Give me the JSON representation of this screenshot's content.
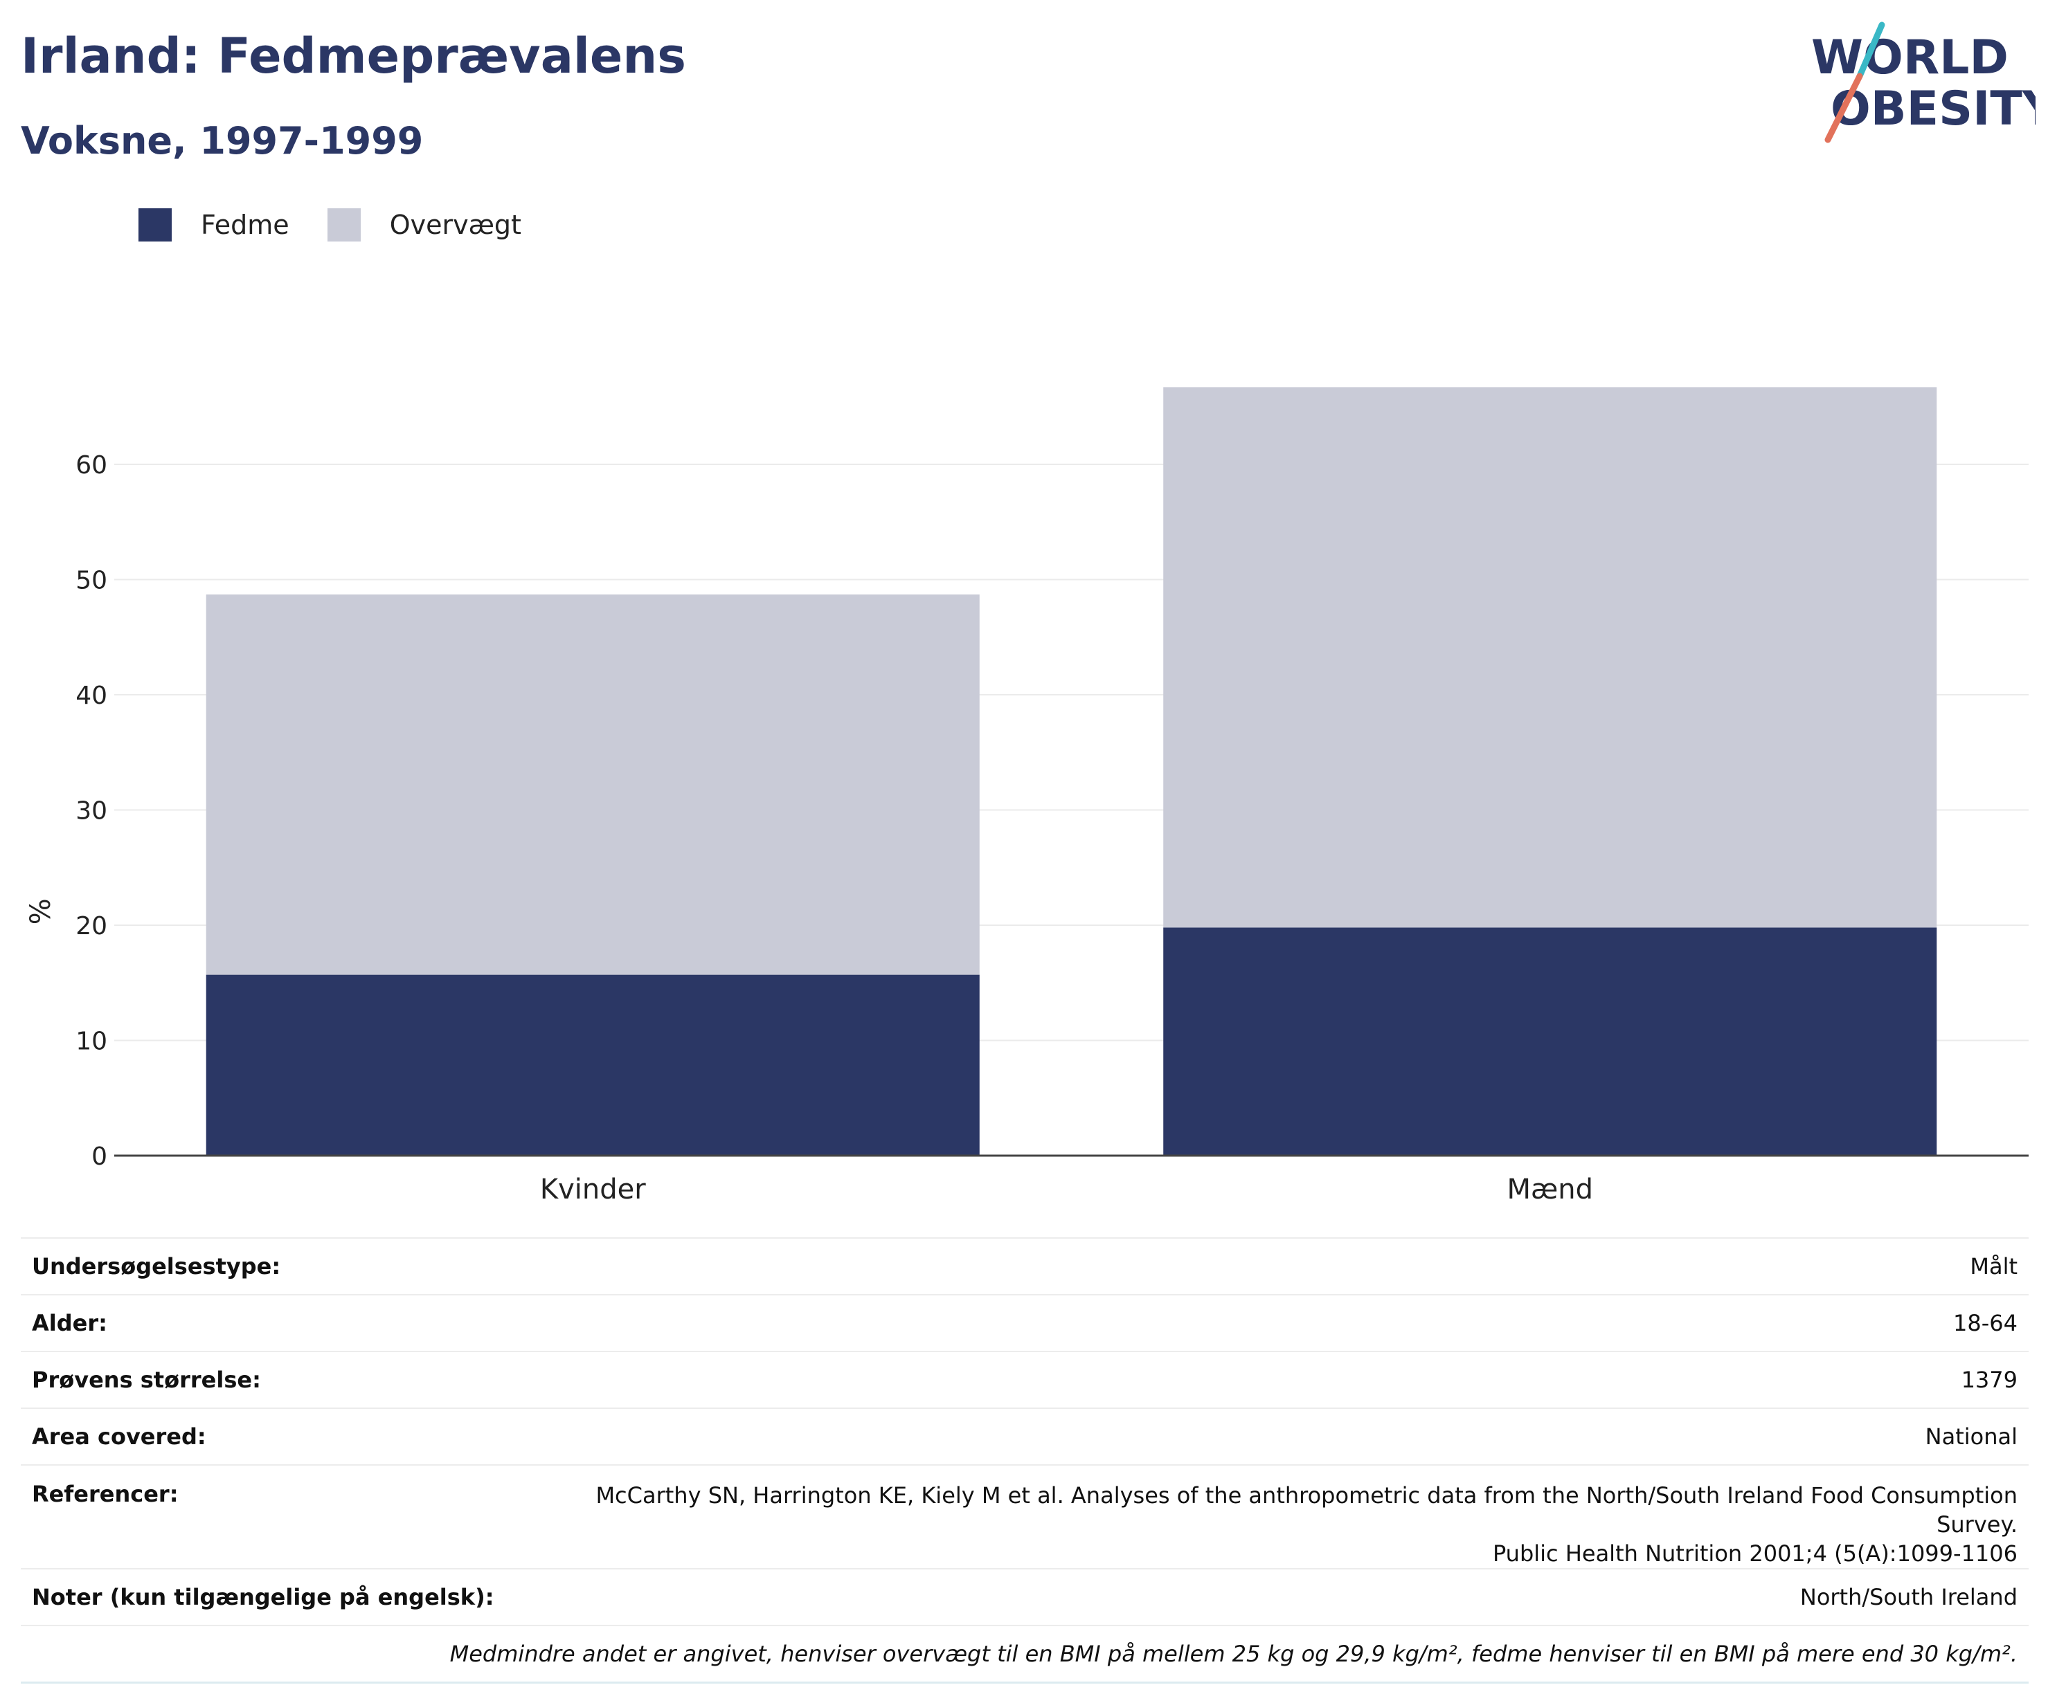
{
  "header": {
    "title": "Irland: Fedmeprævalens",
    "subtitle": "Voksne, 1997-1999",
    "logo_line1": "WORLD",
    "logo_line2": "OBESITY"
  },
  "colors": {
    "fedme": "#2b3765",
    "overvaegt": "#c9cbd7",
    "accent_teal": "#3ab8c6",
    "accent_coral": "#e2725b"
  },
  "legend": [
    {
      "label": "Fedme",
      "color": "#2b3765"
    },
    {
      "label": "Overvægt",
      "color": "#c9cbd7"
    }
  ],
  "chart_data": {
    "type": "bar",
    "stacked": true,
    "categories": [
      "Kvinder",
      "Mænd"
    ],
    "series": [
      {
        "name": "Fedme",
        "values": [
          15.7,
          19.8
        ]
      },
      {
        "name": "Overvægt",
        "values": [
          33.0,
          46.9
        ]
      }
    ],
    "ylabel": "%",
    "yticks": [
      0,
      10,
      20,
      30,
      40,
      50,
      60
    ],
    "ylim": [
      0,
      70
    ],
    "grid": true,
    "legend_position": "top-left"
  },
  "info": {
    "rows": [
      {
        "key": "Undersøgelsestype:",
        "value": "Målt"
      },
      {
        "key": "Alder:",
        "value": "18-64"
      },
      {
        "key": "Prøvens størrelse:",
        "value": "1379"
      },
      {
        "key": "Area covered:",
        "value": "National"
      }
    ],
    "references_key": "Referencer:",
    "references_line1": "McCarthy SN, Harrington KE, Kiely M et al. Analyses of the anthropometric data from the North/South Ireland Food Consumption Survey.",
    "references_line2": "Public Health Nutrition 2001;4 (5(A):1099-1106",
    "notes_key": "Noter (kun tilgængelige på engelsk):",
    "notes_value": "North/South Ireland",
    "footnote": "Medmindre andet er angivet, henviser overvægt til en BMI på mellem 25 kg og 29,9 kg/m², fedme henviser til en BMI på mere end 30 kg/m²."
  }
}
